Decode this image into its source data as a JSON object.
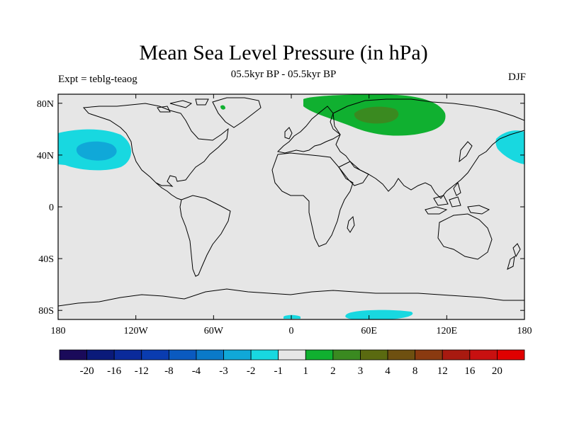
{
  "title": "Mean Sea Level Pressure (in hPa)",
  "subtitle_center": "05.5kyr BP - 05.5kyr BP",
  "subtitle_left": "Expt = teblg-teaog",
  "subtitle_right": "DJF",
  "map": {
    "background_color": "#e6e6e6",
    "lat_labels": [
      "80N",
      "40N",
      "0",
      "40S",
      "80S"
    ],
    "lat_values": [
      80,
      40,
      0,
      -40,
      -80
    ],
    "lon_labels": [
      "180",
      "120W",
      "60W",
      "0",
      "60E",
      "120E",
      "180"
    ],
    "lon_values": [
      -180,
      -120,
      -60,
      0,
      60,
      120,
      180
    ]
  },
  "colorbar": {
    "labels": [
      "-20",
      "-16",
      "-12",
      "-8",
      "-4",
      "-3",
      "-2",
      "-1",
      "1",
      "2",
      "3",
      "4",
      "8",
      "12",
      "16",
      "20"
    ],
    "colors": [
      "#1a0a5a",
      "#0a1a7a",
      "#0a2a9a",
      "#0a3cb0",
      "#0a5ac0",
      "#0a7ac8",
      "#10a8d8",
      "#18d8e0",
      "#e6e6e6",
      "#10b030",
      "#3a8a20",
      "#5a6a10",
      "#6e5010",
      "#8a3a10",
      "#a81a10",
      "#c81010",
      "#e00000"
    ]
  }
}
